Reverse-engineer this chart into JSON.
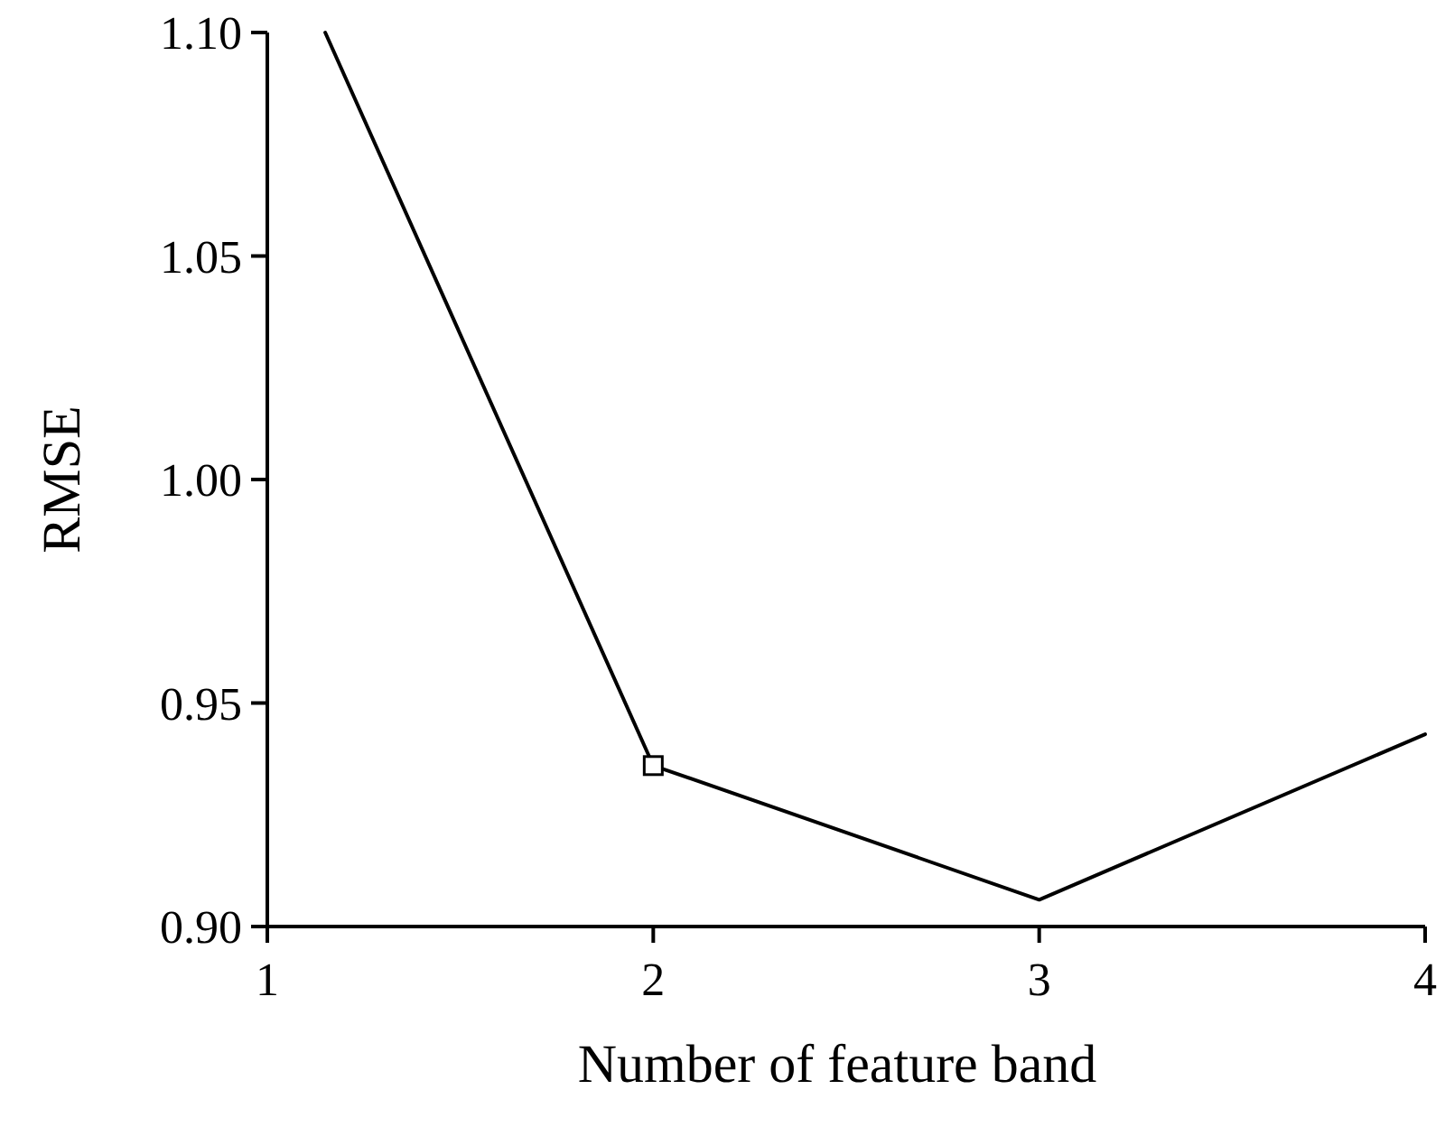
{
  "chart_data": {
    "type": "line",
    "xlabel": "Number of feature band",
    "ylabel": "RMSE",
    "xlim": [
      1,
      4
    ],
    "xticks": [
      1,
      2,
      3,
      4
    ],
    "ylim": [
      0.9,
      1.1
    ],
    "yticks": [
      {
        "value": 0.9,
        "label": "0.90"
      },
      {
        "value": 0.95,
        "label": "0.95"
      },
      {
        "value": 1.0,
        "label": "1.00"
      },
      {
        "value": 1.05,
        "label": "1.05"
      },
      {
        "value": 1.1,
        "label": "1.10"
      }
    ],
    "grid": false,
    "series": [
      {
        "color": "#000000",
        "x": [
          1.15,
          2,
          3,
          4
        ],
        "values": [
          1.1,
          0.936,
          0.906,
          0.943
        ],
        "marker": "none",
        "line_style": "solid"
      },
      {
        "type": "scatter",
        "color": "#000000",
        "x": [
          2
        ],
        "values": [
          0.936
        ],
        "marker": "square"
      }
    ]
  }
}
